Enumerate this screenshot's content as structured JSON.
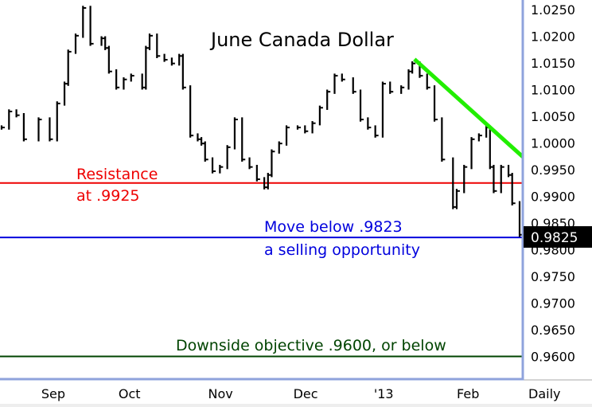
{
  "chart_data": {
    "type": "bar",
    "subtype": "ohlc-line",
    "title": "June Canada Dollar",
    "period_label": "Daily",
    "xlabel": "",
    "ylabel": "",
    "xlim": [
      0,
      141.3
    ],
    "ylim": [
      0.956,
      1.0268
    ],
    "x_ticks": [
      {
        "label": "Sep",
        "day": 14.4
      },
      {
        "label": "Oct",
        "day": 35
      },
      {
        "label": "Nov",
        "day": 59.6
      },
      {
        "label": "Dec",
        "day": 82.6
      },
      {
        "label": "'13",
        "day": 103.7
      },
      {
        "label": "Feb",
        "day": 126.5
      }
    ],
    "y_ticks": [
      "1.0250",
      "1.0200",
      "1.0150",
      "1.0100",
      "1.0050",
      "1.0000",
      "0.9950",
      "0.9900",
      "0.9850",
      "0.9800",
      "0.9750",
      "0.9700",
      "0.9650",
      "0.9600"
    ],
    "last_price": "0.9825",
    "series": [
      {
        "name": "June Canada Dollar",
        "days": [
          0,
          2,
          4,
          6,
          10,
          13,
          15,
          17,
          18,
          20,
          22,
          24,
          27,
          28,
          29,
          31,
          33,
          35,
          38,
          39,
          40,
          42,
          44,
          46,
          48,
          49,
          51,
          53,
          54,
          55,
          57,
          59,
          61,
          63,
          65,
          67,
          69,
          71,
          72,
          73,
          75,
          77,
          80,
          82,
          84,
          86,
          88,
          90,
          92,
          95,
          97,
          99,
          101,
          103,
          105,
          108,
          110,
          111,
          113,
          115,
          117,
          119,
          122,
          123,
          125,
          127,
          129,
          131,
          132,
          133,
          135,
          137,
          138,
          140
        ],
        "closes": [
          1.0029,
          1.0059,
          1.0052,
          1.0007,
          1.0044,
          1.0007,
          1.0074,
          1.0111,
          1.0171,
          1.0201,
          1.0253,
          1.0186,
          1.0196,
          1.0178,
          1.0134,
          1.0104,
          1.0119,
          1.0126,
          1.0104,
          1.0178,
          1.0201,
          1.0163,
          1.0156,
          1.0149,
          1.0163,
          1.0104,
          1.0014,
          1.0007,
          0.9999,
          0.9969,
          0.9947,
          0.9955,
          0.9992,
          1.0044,
          0.9969,
          0.9955,
          0.9932,
          0.9917,
          0.994,
          0.9984,
          0.9999,
          1.0029,
          1.0029,
          1.0022,
          1.0037,
          1.0066,
          1.0096,
          1.0126,
          1.0119,
          1.0096,
          1.0044,
          1.0029,
          1.0014,
          1.0111,
          1.0096,
          1.0104,
          1.0134,
          1.0149,
          1.0126,
          1.0104,
          1.0044,
          0.9969,
          0.988,
          0.991,
          0.9955,
          1.0007,
          1.0014,
          1.0029,
          0.9955,
          0.991,
          0.9955,
          0.994,
          0.9887,
          0.9828
        ]
      }
    ],
    "trendline": {
      "from": {
        "day": 112,
        "price": 1.0157
      },
      "to": {
        "day": 141.3,
        "price": 0.9974
      },
      "color": "#22ee00"
    },
    "levels": [
      {
        "price": 0.9925,
        "color": "#ee0000",
        "labels": [
          "Resistance",
          "at .9925"
        ]
      },
      {
        "price": 0.9823,
        "color": "#0000dd",
        "labels": [
          "Move below .9823",
          "a selling opportunity"
        ]
      },
      {
        "price": 0.96,
        "color": "#004400",
        "labels": [
          "Downside objective .9600, or below"
        ]
      }
    ],
    "grid": false
  }
}
